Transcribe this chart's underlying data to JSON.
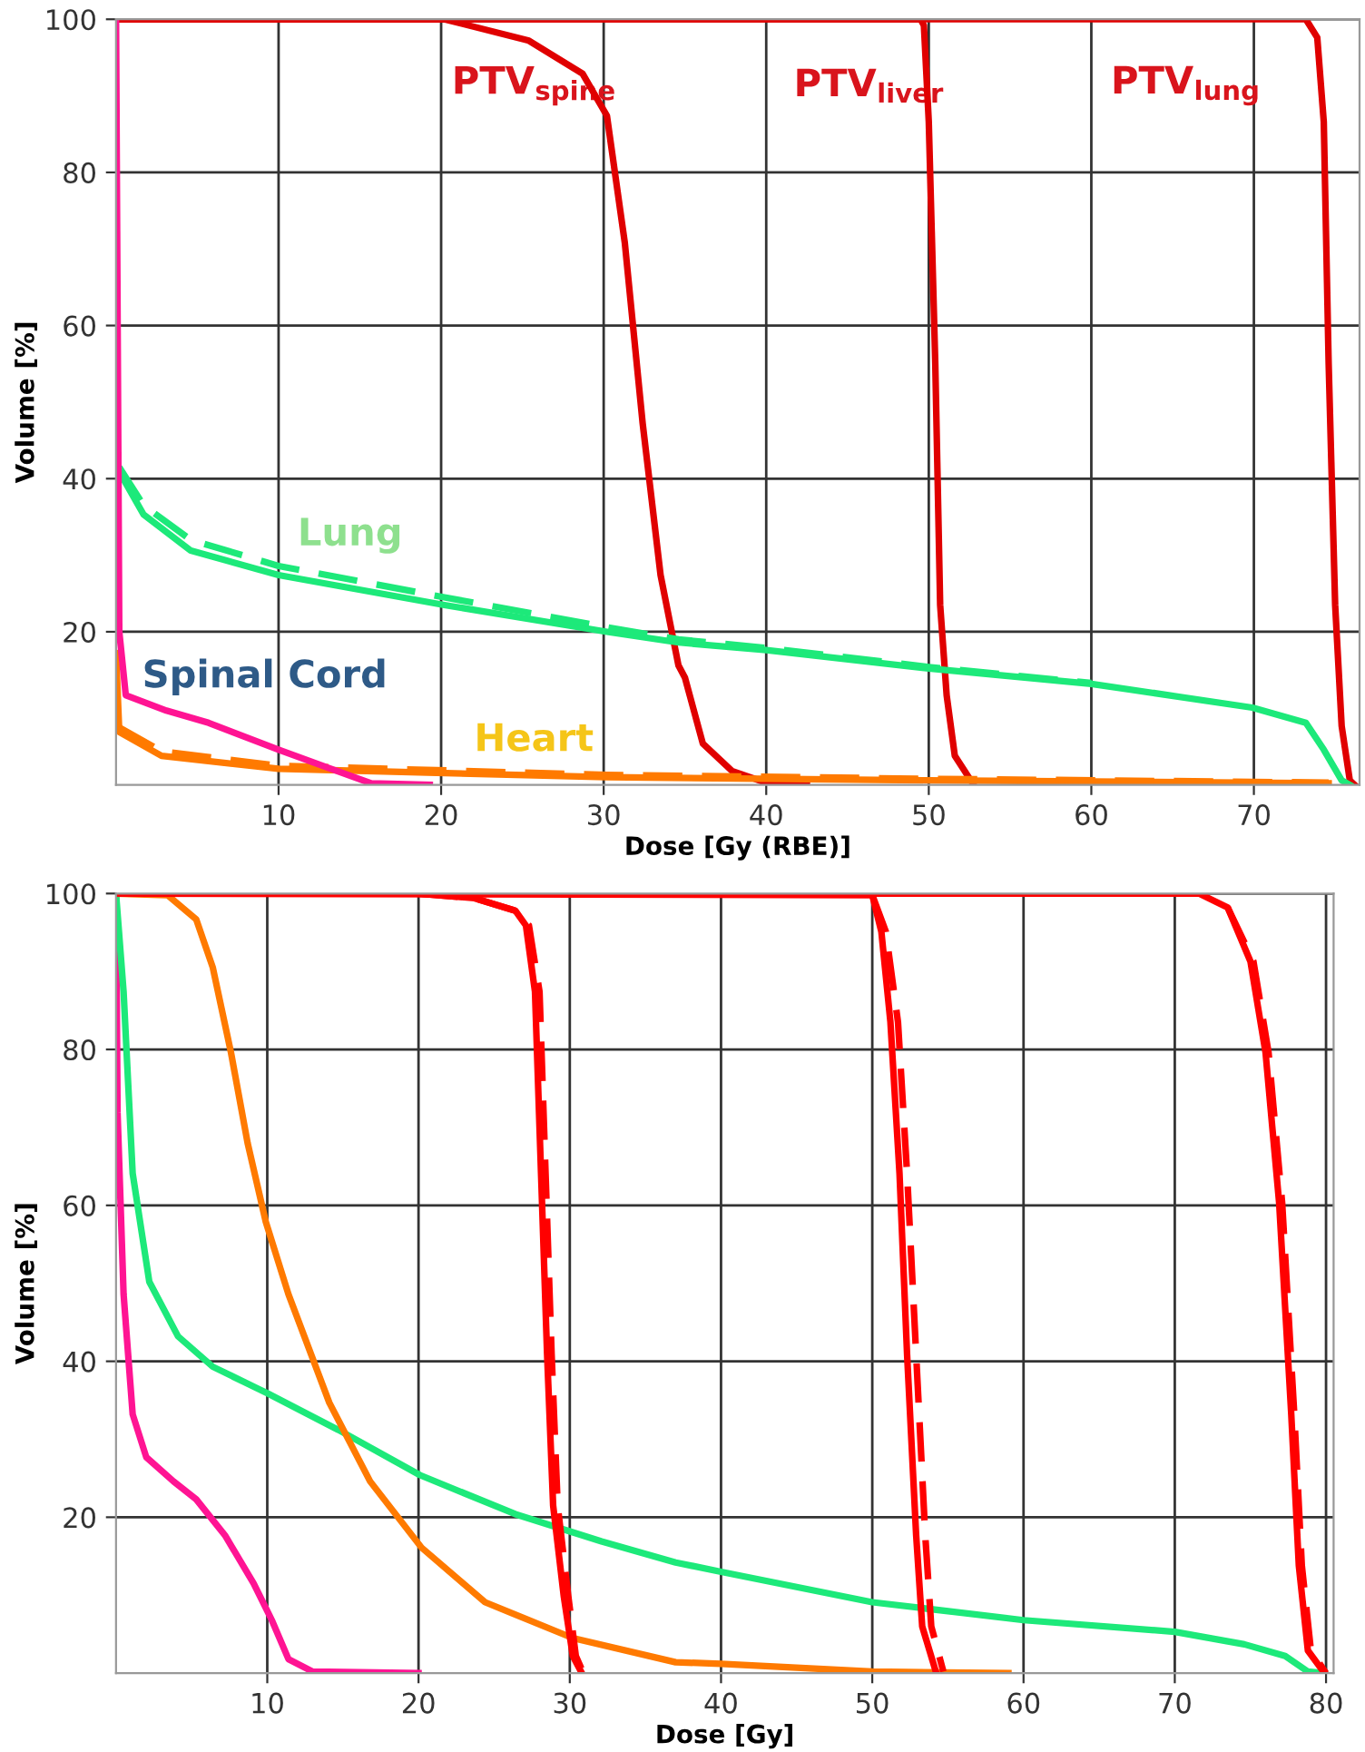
{
  "chart_data": [
    {
      "type": "line",
      "xlabel": "Dose [Gy (RBE)]",
      "ylabel": "Volume [%]",
      "xlim": [
        0,
        76.5
      ],
      "ylim": [
        0,
        100
      ],
      "xticks": [
        10,
        20,
        30,
        40,
        50,
        60,
        70
      ],
      "yticks": [
        20,
        40,
        60,
        80,
        100
      ],
      "grid": true,
      "marker": "none",
      "series": [
        {
          "color": "#e00000",
          "line_style": "solid",
          "x": [
            0,
            20.2,
            25.4,
            28.7,
            30.2,
            31.3,
            32.4,
            33.5,
            34.6,
            35.0,
            36.1,
            37.9,
            40.1,
            42.5
          ],
          "values": [
            100,
            100,
            97.2,
            92.9,
            87.4,
            70.8,
            47.2,
            27.4,
            15.6,
            14.0,
            5.4,
            1.8,
            0.2,
            0
          ]
        },
        {
          "color": "#e00000",
          "line_style": "solid",
          "x": [
            0,
            49.5,
            49.7,
            50.0,
            50.4,
            50.7,
            51.1,
            51.6,
            52.7
          ],
          "values": [
            100,
            100,
            99.2,
            86.6,
            55,
            23.5,
            11.7,
            3.8,
            0.2
          ]
        },
        {
          "color": "#e00000",
          "line_style": "solid",
          "x": [
            0,
            73.2,
            73.9,
            74.3,
            74.6,
            75.0,
            75.4,
            75.9,
            76.2
          ],
          "values": [
            100,
            100,
            97.6,
            86.6,
            55,
            23.5,
            7.7,
            0.6,
            0
          ]
        },
        {
          "color": "#1de97a",
          "line_style": "solid",
          "x": [
            0.2,
            1.7,
            4.6,
            10,
            20.2,
            30.2,
            34.6,
            40,
            50,
            60,
            69.9,
            73.2,
            74.3,
            75.4,
            75.9
          ],
          "values": [
            40.9,
            35.3,
            30.6,
            27.4,
            23.5,
            20,
            18.6,
            17.6,
            15.2,
            13.2,
            10.1,
            8.1,
            4.6,
            0.6,
            0
          ]
        },
        {
          "color": "#1de97a",
          "line_style": "dashed",
          "x": [
            0.2,
            1.7,
            4.6,
            10,
            20.2,
            30.2,
            34.6,
            40,
            50,
            60
          ],
          "values": [
            41.5,
            36.5,
            32,
            28.6,
            24.5,
            20.6,
            19.0,
            17.9,
            15.4,
            13.3
          ]
        },
        {
          "color": "#ff7a00",
          "line_style": "solid",
          "x": [
            0,
            0.2,
            2.8,
            10,
            30.2,
            50,
            74.6
          ],
          "values": [
            17.2,
            6.9,
            3.8,
            2.1,
            1.0,
            0.6,
            0.2
          ]
        },
        {
          "color": "#ff7a00",
          "line_style": "dashed",
          "x": [
            0.2,
            2.8,
            10,
            30.2,
            50,
            74.6
          ],
          "values": [
            7.5,
            4.4,
            2.5,
            1.3,
            0.8,
            0.3
          ]
        },
        {
          "color": "#ff1493",
          "line_style": "solid",
          "x": [
            0,
            0.1,
            0.2,
            0.6,
            3.1,
            5.7,
            10,
            13.1,
            15.7,
            19.3
          ],
          "values": [
            100,
            60,
            20,
            11.7,
            9.7,
            8.1,
            4.6,
            2.2,
            0.2,
            0
          ]
        }
      ],
      "annotations": [
        "PTV$_{spine}$",
        "PTV$_{liver}$",
        "PTV$_{lung}$",
        "Lung",
        "Spinal Cord",
        "Heart"
      ]
    },
    {
      "type": "line",
      "xlabel": "Dose [Gy]",
      "ylabel": "Volume [%]",
      "xlim": [
        0,
        80.5
      ],
      "ylim": [
        0,
        100
      ],
      "xticks": [
        10,
        20,
        30,
        40,
        50,
        60,
        70,
        80
      ],
      "yticks": [
        20,
        40,
        60,
        80,
        100
      ],
      "grid": true,
      "marker": "none",
      "series": [
        {
          "color": "#ff1493",
          "line_style": "solid",
          "x": [
            0,
            0.1,
            0.5,
            1.1,
            2.0,
            3.8,
            5.3,
            7.2,
            9.1,
            10.3,
            11.4,
            13.0,
            20
          ],
          "values": [
            100,
            71.9,
            48.6,
            33.2,
            27.7,
            24.6,
            22.3,
            17.7,
            11.5,
            6.8,
            1.8,
            0.2,
            0
          ]
        },
        {
          "color": "#1de97a",
          "line_style": "solid",
          "x": [
            0,
            0.5,
            1.1,
            2.2,
            4.1,
            6.4,
            10,
            14.7,
            20.1,
            26.4,
            32.1,
            37.0,
            40,
            50,
            60,
            70,
            74.6,
            77.3,
            78.8,
            79.9
          ],
          "values": [
            100,
            87.4,
            64.1,
            50.2,
            43.2,
            39.3,
            35.9,
            31.2,
            25.4,
            20.4,
            16.9,
            14.2,
            13.0,
            9.1,
            6.8,
            5.3,
            3.7,
            2.2,
            0.2,
            0
          ]
        },
        {
          "color": "#ff7a00",
          "line_style": "solid",
          "x": [
            0,
            3.4,
            5.3,
            6.4,
            7.6,
            8.7,
            9.9,
            11.4,
            14.1,
            16.8,
            20.2,
            24.4,
            30.2,
            37.0,
            40,
            50,
            59
          ],
          "values": [
            100,
            99.8,
            96.7,
            90.5,
            79.6,
            68.0,
            57.9,
            48.6,
            34.7,
            24.6,
            16.1,
            9.1,
            4.5,
            1.4,
            1.2,
            0.2,
            0
          ]
        },
        {
          "color": "#ff0000",
          "line_style": "solid",
          "x": [
            0,
            20,
            23.7,
            26.4,
            27.1,
            27.7,
            28.1,
            28.5,
            28.9,
            29.6,
            30.2,
            30.8
          ],
          "values": [
            100,
            100,
            99.4,
            97.8,
            95.9,
            87.4,
            64.1,
            40.9,
            21.5,
            9.9,
            2.2,
            0
          ]
        },
        {
          "color": "#ff0000",
          "line_style": "dashed",
          "x": [
            20,
            23.7,
            26.4,
            27.3,
            28.0,
            28.4,
            28.8,
            29.2,
            29.9,
            30.4,
            30.9
          ],
          "values": [
            100,
            99.4,
            97.8,
            95.9,
            87.4,
            64.1,
            40.9,
            21.5,
            9.9,
            2.2,
            0
          ]
        },
        {
          "color": "#ff0000",
          "line_style": "solid",
          "x": [
            0,
            50.0,
            50.6,
            51.2,
            51.8,
            52.3,
            52.9,
            53.3,
            54.2
          ],
          "values": [
            100,
            99.8,
            95.1,
            83.5,
            64.1,
            40.9,
            17.7,
            6.0,
            0.2
          ]
        },
        {
          "color": "#ff0000",
          "line_style": "dashed",
          "x": [
            50.0,
            50.9,
            51.7,
            52.3,
            52.9,
            53.5,
            53.9,
            54.7
          ],
          "values": [
            99.8,
            95.1,
            83.5,
            64.1,
            40.9,
            17.7,
            6.0,
            0.2
          ]
        },
        {
          "color": "#ff0000",
          "line_style": "solid",
          "x": [
            0,
            71.6,
            73.5,
            75.0,
            76.0,
            76.9,
            77.7,
            78.2,
            78.8,
            79.9
          ],
          "values": [
            100,
            100,
            98.2,
            91.3,
            79.6,
            60.3,
            33.2,
            13.8,
            2.9,
            0
          ]
        },
        {
          "color": "#ff0000",
          "line_style": "dashed",
          "x": [
            73.5,
            75.2,
            76.2,
            77.1,
            77.9,
            78.4,
            79.0,
            80.0
          ],
          "values": [
            98.2,
            91.3,
            79.6,
            60.3,
            33.2,
            13.8,
            2.9,
            0
          ]
        }
      ]
    }
  ]
}
